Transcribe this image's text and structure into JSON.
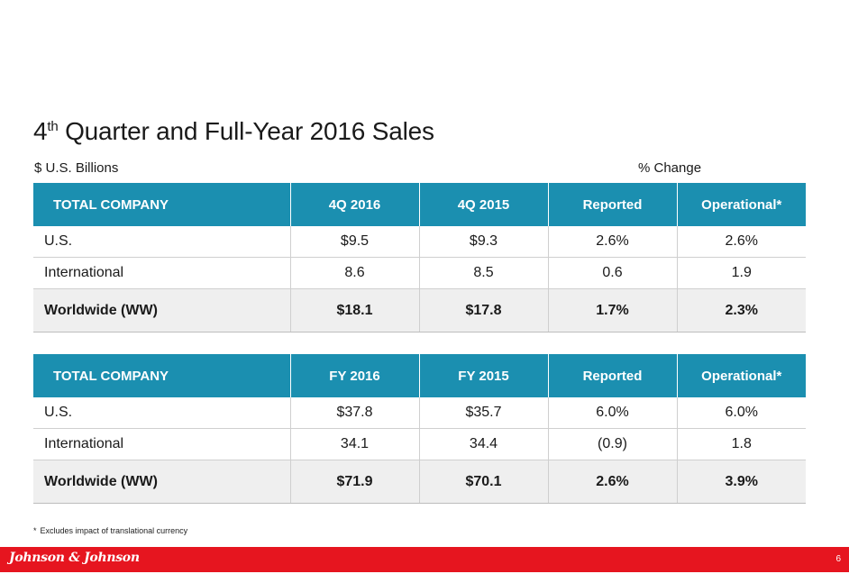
{
  "slide": {
    "title_prefix": "4",
    "title_superscript": "th",
    "title_rest": " Quarter and Full-Year 2016 Sales",
    "units": "$ U.S. Billions",
    "percent_change_label": "% Change"
  },
  "quarter_table": {
    "headers": [
      "TOTAL COMPANY",
      "4Q 2016",
      "4Q 2015",
      "Reported",
      "Operational*"
    ],
    "rows": [
      [
        "U.S.",
        "$9.5",
        "$9.3",
        "2.6%",
        "2.6%"
      ],
      [
        "International",
        "8.6",
        "8.5",
        "0.6",
        "1.9"
      ],
      [
        "Worldwide (WW)",
        "$18.1",
        "$17.8",
        "1.7%",
        "2.3%"
      ]
    ]
  },
  "fullyear_table": {
    "headers": [
      "TOTAL COMPANY",
      "FY 2016",
      "FY 2015",
      "Reported",
      "Operational*"
    ],
    "rows": [
      [
        "U.S.",
        "$37.8",
        "$35.7",
        "6.0%",
        "6.0%"
      ],
      [
        "International",
        "34.1",
        "34.4",
        "(0.9)",
        "1.8"
      ],
      [
        "Worldwide (WW)",
        "$71.9",
        "$70.1",
        "2.6%",
        "3.9%"
      ]
    ]
  },
  "footnote": {
    "marker": "*",
    "text": "Excludes impact of translational currency"
  },
  "footer": {
    "logo_text": "Johnson & Johnson",
    "page_number": "6",
    "brand_color": "#e6151f"
  },
  "colors": {
    "header_fill": "#1b8fb0",
    "total_row_fill": "#efefef"
  }
}
